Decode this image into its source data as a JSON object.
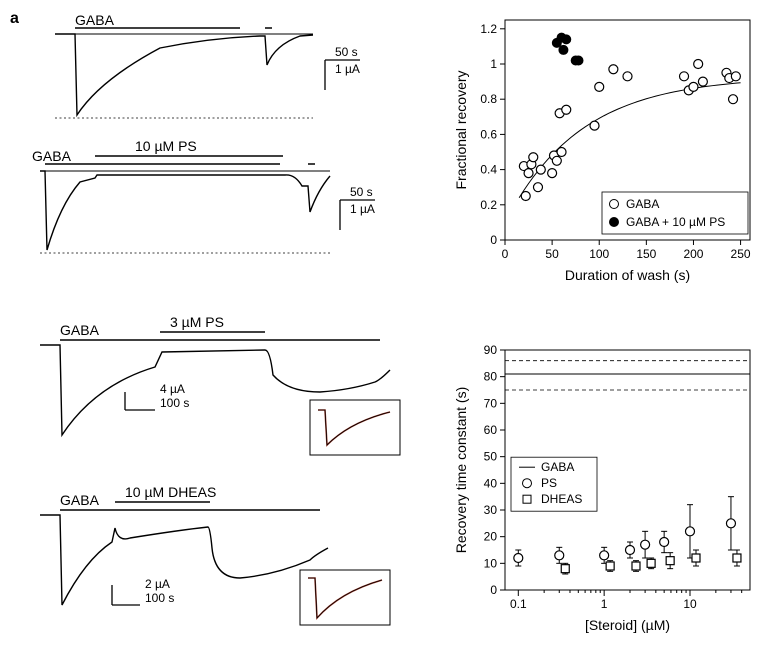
{
  "meta": {
    "background": "#ffffff",
    "font_family": "Arial",
    "axis_color": "#000000",
    "trace_color": "#000000"
  },
  "panel_label": "a",
  "traces": {
    "top1": {
      "label_left": "GABA",
      "scalebar_x": "50 s",
      "scalebar_y": "1 µA"
    },
    "top2": {
      "label_left": "GABA",
      "label_center": "10 µM PS",
      "scalebar_x": "50 s",
      "scalebar_y": "1 µA"
    },
    "mid1": {
      "label_left": "GABA",
      "label_center": "3 µM PS",
      "scalebar_x": "100 s",
      "scalebar_y": "4 µA"
    },
    "mid2": {
      "label_left": "GABA",
      "label_center": "10 µM DHEAS",
      "scalebar_x": "100 s",
      "scalebar_y": "2 µA"
    }
  },
  "chart_b": {
    "type": "scatter",
    "xlabel": "Duration of wash (s)",
    "ylabel": "Fractional recovery",
    "label_fontsize": 14,
    "tick_fontsize": 12,
    "xlim": [
      0,
      260
    ],
    "ylim": [
      0,
      1.25
    ],
    "xtick_step": 50,
    "ytick_step": 0.2,
    "legend": [
      {
        "label": "GABA",
        "marker": "open-circle",
        "color": "#000000"
      },
      {
        "label": "GABA + 10 µM PS",
        "marker": "filled-circle",
        "color": "#000000"
      }
    ],
    "open_points": [
      [
        20,
        0.42
      ],
      [
        22,
        0.25
      ],
      [
        25,
        0.38
      ],
      [
        28,
        0.43
      ],
      [
        30,
        0.47
      ],
      [
        35,
        0.3
      ],
      [
        38,
        0.4
      ],
      [
        50,
        0.38
      ],
      [
        52,
        0.48
      ],
      [
        55,
        0.45
      ],
      [
        58,
        0.72
      ],
      [
        60,
        0.5
      ],
      [
        65,
        0.74
      ],
      [
        95,
        0.65
      ],
      [
        100,
        0.87
      ],
      [
        115,
        0.97
      ],
      [
        130,
        0.93
      ],
      [
        190,
        0.93
      ],
      [
        195,
        0.85
      ],
      [
        200,
        0.87
      ],
      [
        205,
        1.0
      ],
      [
        210,
        0.9
      ],
      [
        235,
        0.95
      ],
      [
        238,
        0.92
      ],
      [
        242,
        0.8
      ],
      [
        245,
        0.93
      ]
    ],
    "filled_points": [
      [
        55,
        1.12
      ],
      [
        60,
        1.15
      ],
      [
        65,
        1.14
      ],
      [
        62,
        1.08
      ],
      [
        75,
        1.02
      ],
      [
        78,
        1.02
      ]
    ],
    "fit_curve": "exponential_rise"
  },
  "chart_c": {
    "type": "errorbar",
    "xlabel": "[Steroid] (µM)",
    "ylabel": "Recovery time constant (s)",
    "label_fontsize": 14,
    "tick_fontsize": 12,
    "xscale": "log",
    "xlim": [
      0.07,
      50
    ],
    "ylim": [
      0,
      90
    ],
    "ytick_step": 10,
    "xticks": [
      0.1,
      1,
      10
    ],
    "legend": [
      {
        "label": "GABA",
        "type": "line",
        "color": "#000000"
      },
      {
        "label": "PS",
        "marker": "open-circle",
        "color": "#000000"
      },
      {
        "label": "DHEAS",
        "marker": "open-square",
        "color": "#000000"
      }
    ],
    "gaba_band": {
      "mean": 81,
      "upper": 86,
      "lower": 75
    },
    "ps_points": [
      {
        "x": 0.1,
        "y": 12,
        "err": 3
      },
      {
        "x": 0.3,
        "y": 13,
        "err": 3
      },
      {
        "x": 1,
        "y": 13,
        "err": 3
      },
      {
        "x": 2,
        "y": 15,
        "err": 3
      },
      {
        "x": 3,
        "y": 17,
        "err": 5
      },
      {
        "x": 5,
        "y": 18,
        "err": 4
      },
      {
        "x": 10,
        "y": 22,
        "err": 10
      },
      {
        "x": 30,
        "y": 25,
        "err": 10
      }
    ],
    "dheas_points": [
      {
        "x": 0.3,
        "y": 8,
        "err": 2
      },
      {
        "x": 1,
        "y": 9,
        "err": 2
      },
      {
        "x": 2,
        "y": 9,
        "err": 2
      },
      {
        "x": 3,
        "y": 10,
        "err": 2
      },
      {
        "x": 5,
        "y": 11,
        "err": 3
      },
      {
        "x": 10,
        "y": 12,
        "err": 3
      },
      {
        "x": 30,
        "y": 12,
        "err": 3
      }
    ]
  }
}
